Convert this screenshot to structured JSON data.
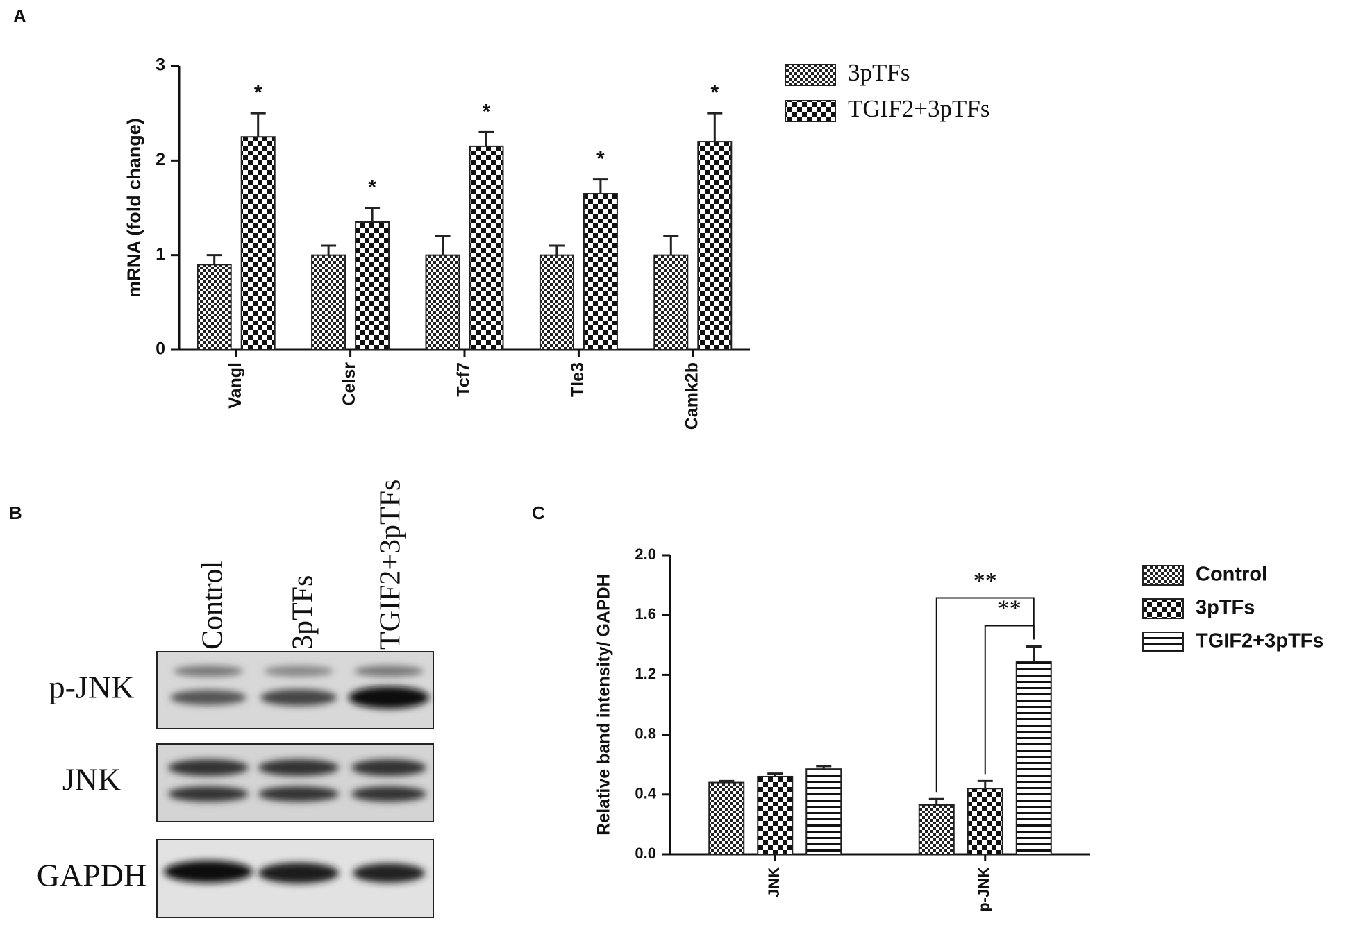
{
  "chart_data": [
    {
      "type": "bar",
      "panel_label": "A",
      "y_label": "mRNA (fold change)",
      "categories": [
        "Vangl",
        "Celsr",
        "Tcf7",
        "Tle3",
        "Camk2b"
      ],
      "series": [
        {
          "name": "3pTFs",
          "color": "#222222",
          "pattern": "fine-check",
          "values": [
            0.9,
            1.0,
            1.0,
            1.0,
            1.0
          ],
          "errors": [
            0.1,
            0.1,
            0.2,
            0.1,
            0.2
          ]
        },
        {
          "name": "TGIF2+3pTFs",
          "color": "#222222",
          "pattern": "coarse-check",
          "values": [
            2.25,
            1.35,
            2.15,
            1.65,
            2.2
          ],
          "errors": [
            0.25,
            0.15,
            0.15,
            0.15,
            0.3
          ]
        }
      ],
      "annotations": [
        {
          "text": "*",
          "series": 1,
          "category": 0
        },
        {
          "text": "*",
          "series": 1,
          "category": 1
        },
        {
          "text": "*",
          "series": 1,
          "category": 2
        },
        {
          "text": "*",
          "series": 1,
          "category": 3
        },
        {
          "text": "*",
          "series": 1,
          "category": 4
        }
      ],
      "ylim": [
        0,
        3
      ],
      "yticks": [
        0,
        1,
        2,
        3
      ],
      "grid": false,
      "legend": "outside-right"
    },
    {
      "type": "bar",
      "panel_label": "C",
      "y_label": "Relative band intensity/ GAPDH",
      "categories": [
        "JNK",
        "p-JNK"
      ],
      "series": [
        {
          "name": "Control",
          "color": "#222222",
          "pattern": "fine-check",
          "values": [
            0.48,
            0.33
          ],
          "errors": [
            0.01,
            0.04
          ]
        },
        {
          "name": "3pTFs",
          "color": "#222222",
          "pattern": "coarse-check",
          "values": [
            0.52,
            0.44
          ],
          "errors": [
            0.02,
            0.05
          ]
        },
        {
          "name": "TGIF2+3pTFs",
          "color": "#222222",
          "pattern": "stripes",
          "values": [
            0.57,
            1.29
          ],
          "errors": [
            0.02,
            0.1
          ]
        }
      ],
      "brackets": [
        {
          "text": "**",
          "category": 1,
          "from_series": 1,
          "to_series": 2
        },
        {
          "text": "**",
          "category": 1,
          "from_series": 0,
          "to_series": 2
        }
      ],
      "ylim": [
        0,
        2.0
      ],
      "yticks": [
        {
          "value": 0,
          "label": "0.0"
        },
        {
          "value": 0.4,
          "label": "0.4"
        },
        {
          "value": 0.8,
          "label": "0.8"
        },
        {
          "value": 1.2,
          "label": "1.2"
        },
        {
          "value": 1.6,
          "label": "1.6"
        },
        {
          "value": 2.0,
          "label": "2.0"
        }
      ],
      "grid": false,
      "legend": "outside-right"
    }
  ],
  "blot": {
    "panel_label": "B",
    "lanes": [
      "Control",
      "3pTFs",
      "TGIF2+3pTFs"
    ],
    "rows": [
      "p-JNK",
      "JNK",
      "GAPDH"
    ]
  }
}
